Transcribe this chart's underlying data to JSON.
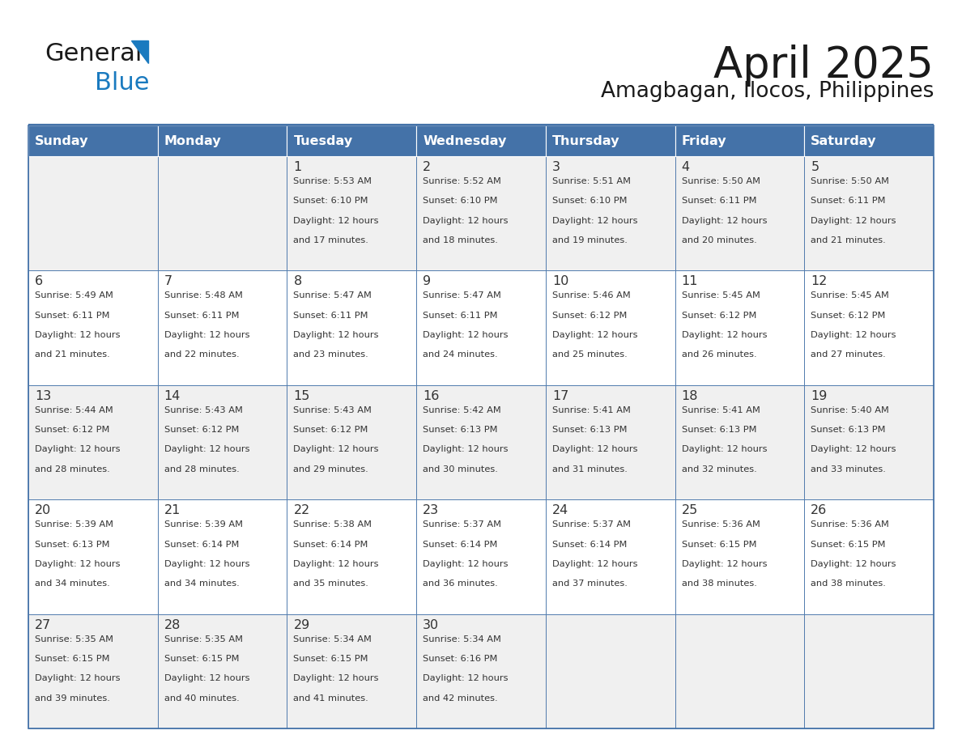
{
  "title": "April 2025",
  "subtitle": "Amagbagan, Ilocos, Philippines",
  "days_of_week": [
    "Sunday",
    "Monday",
    "Tuesday",
    "Wednesday",
    "Thursday",
    "Friday",
    "Saturday"
  ],
  "header_bg": "#4472a8",
  "header_text": "#ffffff",
  "cell_bg_even": "#f0f0f0",
  "cell_bg_odd": "#ffffff",
  "border_color": "#4472a8",
  "text_color": "#333333",
  "logo_general_color": "#1a1a1a",
  "logo_blue_color": "#1a7abf",
  "calendar_data": [
    [
      null,
      null,
      {
        "day": 1,
        "sunrise": "5:53 AM",
        "sunset": "6:10 PM",
        "daylight1": "12 hours",
        "daylight2": "and 17 minutes."
      },
      {
        "day": 2,
        "sunrise": "5:52 AM",
        "sunset": "6:10 PM",
        "daylight1": "12 hours",
        "daylight2": "and 18 minutes."
      },
      {
        "day": 3,
        "sunrise": "5:51 AM",
        "sunset": "6:10 PM",
        "daylight1": "12 hours",
        "daylight2": "and 19 minutes."
      },
      {
        "day": 4,
        "sunrise": "5:50 AM",
        "sunset": "6:11 PM",
        "daylight1": "12 hours",
        "daylight2": "and 20 minutes."
      },
      {
        "day": 5,
        "sunrise": "5:50 AM",
        "sunset": "6:11 PM",
        "daylight1": "12 hours",
        "daylight2": "and 21 minutes."
      }
    ],
    [
      {
        "day": 6,
        "sunrise": "5:49 AM",
        "sunset": "6:11 PM",
        "daylight1": "12 hours",
        "daylight2": "and 21 minutes."
      },
      {
        "day": 7,
        "sunrise": "5:48 AM",
        "sunset": "6:11 PM",
        "daylight1": "12 hours",
        "daylight2": "and 22 minutes."
      },
      {
        "day": 8,
        "sunrise": "5:47 AM",
        "sunset": "6:11 PM",
        "daylight1": "12 hours",
        "daylight2": "and 23 minutes."
      },
      {
        "day": 9,
        "sunrise": "5:47 AM",
        "sunset": "6:11 PM",
        "daylight1": "12 hours",
        "daylight2": "and 24 minutes."
      },
      {
        "day": 10,
        "sunrise": "5:46 AM",
        "sunset": "6:12 PM",
        "daylight1": "12 hours",
        "daylight2": "and 25 minutes."
      },
      {
        "day": 11,
        "sunrise": "5:45 AM",
        "sunset": "6:12 PM",
        "daylight1": "12 hours",
        "daylight2": "and 26 minutes."
      },
      {
        "day": 12,
        "sunrise": "5:45 AM",
        "sunset": "6:12 PM",
        "daylight1": "12 hours",
        "daylight2": "and 27 minutes."
      }
    ],
    [
      {
        "day": 13,
        "sunrise": "5:44 AM",
        "sunset": "6:12 PM",
        "daylight1": "12 hours",
        "daylight2": "and 28 minutes."
      },
      {
        "day": 14,
        "sunrise": "5:43 AM",
        "sunset": "6:12 PM",
        "daylight1": "12 hours",
        "daylight2": "and 28 minutes."
      },
      {
        "day": 15,
        "sunrise": "5:43 AM",
        "sunset": "6:12 PM",
        "daylight1": "12 hours",
        "daylight2": "and 29 minutes."
      },
      {
        "day": 16,
        "sunrise": "5:42 AM",
        "sunset": "6:13 PM",
        "daylight1": "12 hours",
        "daylight2": "and 30 minutes."
      },
      {
        "day": 17,
        "sunrise": "5:41 AM",
        "sunset": "6:13 PM",
        "daylight1": "12 hours",
        "daylight2": "and 31 minutes."
      },
      {
        "day": 18,
        "sunrise": "5:41 AM",
        "sunset": "6:13 PM",
        "daylight1": "12 hours",
        "daylight2": "and 32 minutes."
      },
      {
        "day": 19,
        "sunrise": "5:40 AM",
        "sunset": "6:13 PM",
        "daylight1": "12 hours",
        "daylight2": "and 33 minutes."
      }
    ],
    [
      {
        "day": 20,
        "sunrise": "5:39 AM",
        "sunset": "6:13 PM",
        "daylight1": "12 hours",
        "daylight2": "and 34 minutes."
      },
      {
        "day": 21,
        "sunrise": "5:39 AM",
        "sunset": "6:14 PM",
        "daylight1": "12 hours",
        "daylight2": "and 34 minutes."
      },
      {
        "day": 22,
        "sunrise": "5:38 AM",
        "sunset": "6:14 PM",
        "daylight1": "12 hours",
        "daylight2": "and 35 minutes."
      },
      {
        "day": 23,
        "sunrise": "5:37 AM",
        "sunset": "6:14 PM",
        "daylight1": "12 hours",
        "daylight2": "and 36 minutes."
      },
      {
        "day": 24,
        "sunrise": "5:37 AM",
        "sunset": "6:14 PM",
        "daylight1": "12 hours",
        "daylight2": "and 37 minutes."
      },
      {
        "day": 25,
        "sunrise": "5:36 AM",
        "sunset": "6:15 PM",
        "daylight1": "12 hours",
        "daylight2": "and 38 minutes."
      },
      {
        "day": 26,
        "sunrise": "5:36 AM",
        "sunset": "6:15 PM",
        "daylight1": "12 hours",
        "daylight2": "and 38 minutes."
      }
    ],
    [
      {
        "day": 27,
        "sunrise": "5:35 AM",
        "sunset": "6:15 PM",
        "daylight1": "12 hours",
        "daylight2": "and 39 minutes."
      },
      {
        "day": 28,
        "sunrise": "5:35 AM",
        "sunset": "6:15 PM",
        "daylight1": "12 hours",
        "daylight2": "and 40 minutes."
      },
      {
        "day": 29,
        "sunrise": "5:34 AM",
        "sunset": "6:15 PM",
        "daylight1": "12 hours",
        "daylight2": "and 41 minutes."
      },
      {
        "day": 30,
        "sunrise": "5:34 AM",
        "sunset": "6:16 PM",
        "daylight1": "12 hours",
        "daylight2": "and 42 minutes."
      },
      null,
      null,
      null
    ]
  ],
  "figsize": [
    11.88,
    9.18
  ],
  "dpi": 100
}
